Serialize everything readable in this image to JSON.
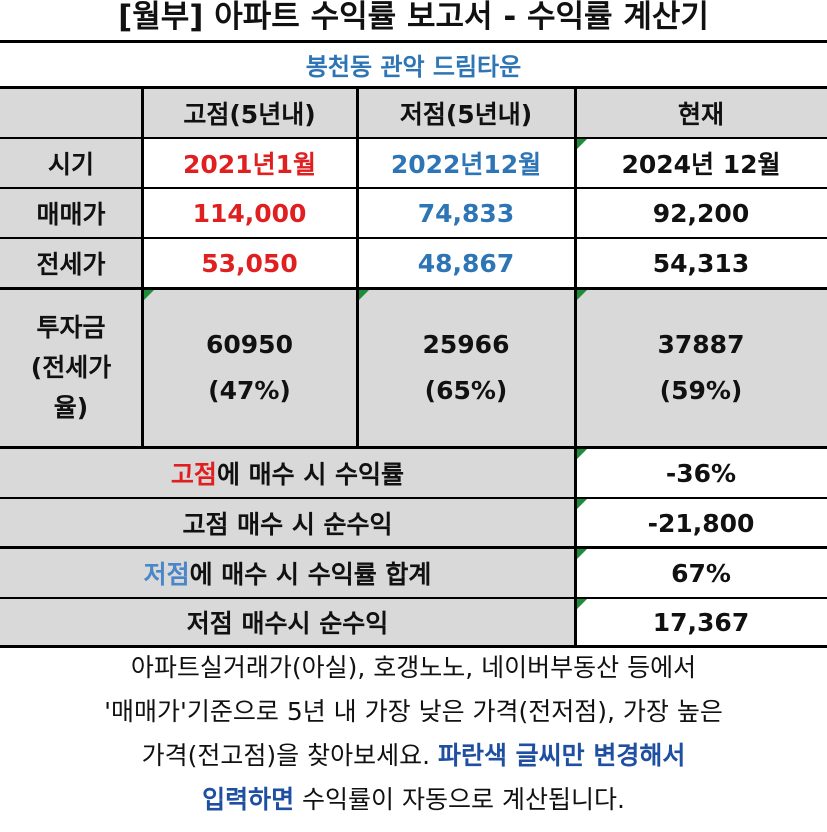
{
  "title": "[월부] 아파트 수익률 보고서 - 수익률 계산기",
  "subtitle": "봉천동 관악 드림타운",
  "columns": [
    "고점(5년내)",
    "저점(5년내)",
    "현재"
  ],
  "rows": {
    "period": {
      "label": "시기",
      "high": "2021년1월",
      "low": "2022년12월",
      "current": "2024년 12월"
    },
    "sale": {
      "label": "매매가",
      "high": "114,000",
      "low": "74,833",
      "current": "92,200"
    },
    "jeonse": {
      "label": "전세가",
      "high": "53,050",
      "low": "48,867",
      "current": "54,313"
    },
    "investment": {
      "label_line1": "투자금",
      "label_line2": "(전세가",
      "label_line3": "율)",
      "high_amount": "60950",
      "high_ratio": "(47%)",
      "low_amount": "25966",
      "low_ratio": "(65%)",
      "current_amount": "37887",
      "current_ratio": "(59%)"
    }
  },
  "summary": [
    {
      "prefix": "고점",
      "prefix_color": "#e02020",
      "rest": "에 매수 시 수익률",
      "value": "-36%"
    },
    {
      "prefix": "",
      "prefix_color": "",
      "rest": "고점 매수 시 순수익",
      "value": "-21,800"
    },
    {
      "prefix": "저점",
      "prefix_color": "#4a86c8",
      "rest": "에 매수 시 수익률 합계",
      "value": "67%"
    },
    {
      "prefix": "",
      "prefix_color": "",
      "rest": "저점 매수시 순수익",
      "value": "17,367"
    }
  ],
  "note": {
    "line1": "아파트실거래가(아실), 호갱노노, 네이버부동산 등에서",
    "line2": "'매매가'기준으로 5년 내 가장 낮은 가격(전저점), 가장 높은",
    "line3_plain": "가격(전고점)을 찾아보세요. ",
    "line3_bold": "파란색 글씨만 변경해서",
    "line4_bold": "입력하면",
    "line4_plain": " 수익률이 자동으로 계산됩니다."
  },
  "colors": {
    "high": "#e02020",
    "low": "#2e75b6",
    "header_bg": "#d9d9d9",
    "marker": "#1e8c3a"
  }
}
